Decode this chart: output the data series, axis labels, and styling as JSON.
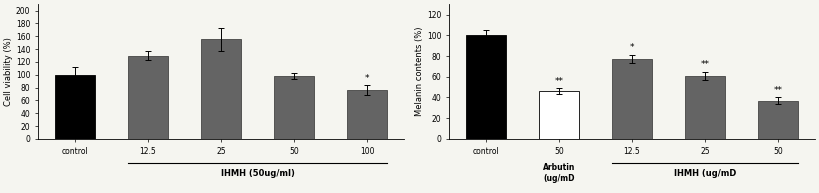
{
  "chart1": {
    "categories": [
      "control",
      "12.5",
      "25",
      "50",
      "100"
    ],
    "values": [
      100,
      130,
      155,
      98,
      76
    ],
    "errors": [
      12,
      7,
      18,
      5,
      8
    ],
    "bar_colors": [
      "#000000",
      "#646464",
      "#646464",
      "#646464",
      "#646464"
    ],
    "bar_edgecolors": [
      "#000000",
      "#444444",
      "#444444",
      "#444444",
      "#444444"
    ],
    "ylabel": "Cell viability (%)",
    "xlabel_main": "IHMH (50ug/ml)",
    "ylim": [
      0,
      210
    ],
    "yticks": [
      0,
      20,
      40,
      60,
      80,
      100,
      120,
      140,
      160,
      180,
      200
    ],
    "sig_label_idx": 4,
    "sig_label_text": "*"
  },
  "chart2": {
    "categories": [
      "control",
      "50",
      "12.5",
      "25",
      "50"
    ],
    "values": [
      100,
      46,
      77,
      61,
      37
    ],
    "errors": [
      5,
      3,
      4,
      4,
      3
    ],
    "bar_colors": [
      "#000000",
      "#ffffff",
      "#646464",
      "#646464",
      "#646464"
    ],
    "bar_edgecolors": [
      "#000000",
      "#000000",
      "#444444",
      "#444444",
      "#444444"
    ],
    "ylabel": "Melanin contents (%)",
    "xlabel_arbutin": "Arbutin\n(ug/mD",
    "xlabel_ihmh": "IHMH (ug/mD",
    "ylim": [
      0,
      130
    ],
    "yticks": [
      0,
      20,
      40,
      60,
      80,
      100,
      120
    ],
    "sig_labels": {
      "1": "**",
      "2": "*",
      "3": "**",
      "4": "**"
    }
  },
  "bg_color": "#f5f5f0",
  "bar_width": 0.55,
  "tick_fontsize": 5.5,
  "ylabel_fontsize": 6,
  "xlabel_fontsize": 6,
  "sig_fontsize": 6.5
}
